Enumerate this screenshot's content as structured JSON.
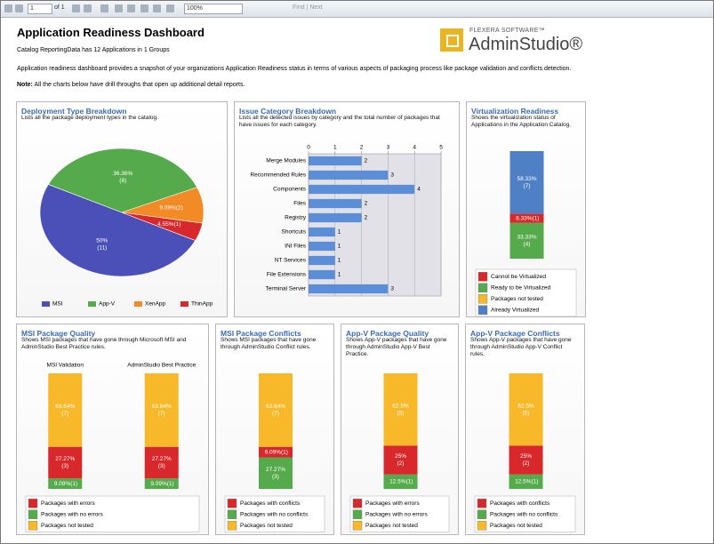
{
  "toolbar": {
    "page": "1",
    "page_count": "of 1",
    "zoom": "100%",
    "find": "Find | Next"
  },
  "header": {
    "title": "Application Readiness Dashboard",
    "summary": "Catalog ReportingData has 12 Applications in 1 Groups",
    "description": "Application readiness dashboard provides a snapshot of your organizations Application Readiness status in terms of various aspects of packaging process like package validation and conflicts detection.",
    "note_label": "Note:",
    "note": "All the charts below have drill throughs that open up additional detail reports.",
    "logo_company": "FLEXERA SOFTWARE™",
    "logo_product": "AdminStudio®"
  },
  "chart_data": [
    {
      "type": "pie",
      "title": "Deployment Type Breakdown",
      "subtitle": "Lists all the package deployment types in the catalog.",
      "categories": [
        "MSI",
        "App-V",
        "XenApp",
        "ThinApp"
      ],
      "values": [
        50,
        36.36,
        9.09,
        4.55
      ],
      "value_labels": [
        "50%",
        "36.36%",
        "9.09%",
        "4.55%"
      ],
      "count_labels": [
        "(11)",
        "(8)",
        "(2)",
        "(1)"
      ],
      "colors": [
        "#4b4fb8",
        "#55ab4b",
        "#f28a26",
        "#d8282b"
      ],
      "legend": "bottom"
    },
    {
      "type": "hbar",
      "title": "Issue Category Breakdown",
      "subtitle": "Lists all the detected issues by category and the total number of packages that have issues for each category.",
      "categories": [
        "Merge Modules",
        "Recommended Rules",
        "Components",
        "Files",
        "Registry",
        "Shortcuts",
        "INI Files",
        "NT Services",
        "File Extensions",
        "Terminal Server"
      ],
      "values": [
        2,
        3,
        4,
        2,
        2,
        1,
        1,
        1,
        1,
        3
      ],
      "color": "#5b8ed6",
      "xlim": [
        0,
        5
      ],
      "xticks": [
        0,
        1,
        2,
        3,
        4,
        5
      ],
      "grid": true
    },
    {
      "type": "stacked_bar",
      "title": "Virtualization Readiness",
      "subtitle": "Shows the virtualization status of Applications in the Application Catalog.",
      "series": [
        {
          "name": "Cannot be Virtualized",
          "color": "#d8282b",
          "values": [
            8.33
          ],
          "value_labels": [
            "8.33%"
          ],
          "count_labels": [
            "(1)"
          ]
        },
        {
          "name": "Ready to be Virtualized",
          "color": "#55ab4b",
          "values": [
            33.33
          ],
          "value_labels": [
            "33.33%"
          ],
          "count_labels": [
            "(4)"
          ]
        },
        {
          "name": "Packages not tested",
          "color": "#f7b82a",
          "values": [
            0
          ]
        },
        {
          "name": "Already Virtualized",
          "color": "#4f80c6",
          "values": [
            58.33
          ],
          "value_labels": [
            "58.33%"
          ],
          "count_labels": [
            "(7)"
          ]
        }
      ]
    },
    {
      "type": "stacked_bar",
      "title": "MSI Package Quality",
      "subtitle": "Shows MSI packages that have gone through Microsoft MSI and AdminStudio Best Practice rules.",
      "categories": [
        "MSI Validation",
        "AdminStudio Best Practice"
      ],
      "series": [
        {
          "name": "Packages with errors",
          "color": "#d8282b",
          "values": [
            27.27,
            27.27
          ],
          "value_labels": [
            "27.27%",
            "27.27%"
          ],
          "count_labels": [
            "(3)",
            "(3)"
          ]
        },
        {
          "name": "Packages with no errors",
          "color": "#55ab4b",
          "values": [
            9.09,
            9.09
          ],
          "value_labels": [
            "9.09%",
            "9.09%"
          ],
          "count_labels": [
            "(1)",
            "(1)"
          ]
        },
        {
          "name": "Packages not tested",
          "color": "#f7b82a",
          "values": [
            63.64,
            63.64
          ],
          "value_labels": [
            "63.64%",
            "63.64%"
          ],
          "count_labels": [
            "(7)",
            "(7)"
          ]
        }
      ]
    },
    {
      "type": "stacked_bar",
      "title": "MSI Package Conflicts",
      "subtitle": "Shows MSI packages that have gone through AdminStudio Conflict rules.",
      "series": [
        {
          "name": "Packages with conflicts",
          "color": "#d8282b",
          "values": [
            9.09
          ],
          "value_labels": [
            "9.09%"
          ],
          "count_labels": [
            "(1)"
          ]
        },
        {
          "name": "Packages with no conflicts",
          "color": "#55ab4b",
          "values": [
            27.27
          ],
          "value_labels": [
            "27.27%"
          ],
          "count_labels": [
            "(3)"
          ]
        },
        {
          "name": "Packages not tested",
          "color": "#f7b82a",
          "values": [
            63.64
          ],
          "value_labels": [
            "63.64%"
          ],
          "count_labels": [
            "(7)"
          ]
        }
      ]
    },
    {
      "type": "stacked_bar",
      "title": "App-V Package Quality",
      "subtitle": "Shows App-V packages that have gone through AdminStudio App-V Best Practice.",
      "series": [
        {
          "name": "Packages with errors",
          "color": "#d8282b",
          "values": [
            25
          ],
          "value_labels": [
            "25%"
          ],
          "count_labels": [
            "(2)"
          ]
        },
        {
          "name": "Packages with no errors",
          "color": "#55ab4b",
          "values": [
            12.5
          ],
          "value_labels": [
            "12.5%"
          ],
          "count_labels": [
            "(1)"
          ]
        },
        {
          "name": "Packages not tested",
          "color": "#f7b82a",
          "values": [
            62.5
          ],
          "value_labels": [
            "62.5%"
          ],
          "count_labels": [
            "(5)"
          ]
        }
      ]
    },
    {
      "type": "stacked_bar",
      "title": "App-V Package Conflicts",
      "subtitle": "Shows App-V packages that have gone through AdminStudio App-V Conflict rules.",
      "series": [
        {
          "name": "Packages with conflicts",
          "color": "#d8282b",
          "values": [
            25
          ],
          "value_labels": [
            "25%"
          ],
          "count_labels": [
            "(2)"
          ]
        },
        {
          "name": "Packages with no conflicts",
          "color": "#55ab4b",
          "values": [
            12.5
          ],
          "value_labels": [
            "12.5%"
          ],
          "count_labels": [
            "(1)"
          ]
        },
        {
          "name": "Packages not tested",
          "color": "#f7b82a",
          "values": [
            62.5
          ],
          "value_labels": [
            "62.5%"
          ],
          "count_labels": [
            "(5)"
          ]
        }
      ]
    }
  ]
}
